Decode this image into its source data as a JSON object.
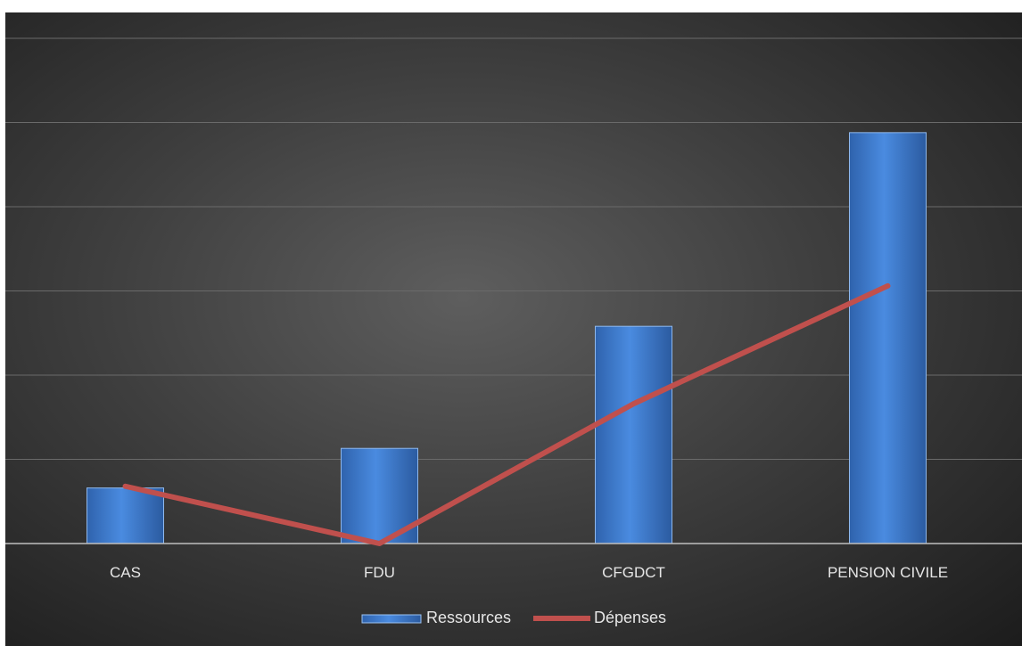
{
  "chart_data": {
    "type": "bar",
    "categories": [
      "CAS",
      "FDU",
      "CFGDCT",
      "PENSION CIVILE"
    ],
    "series": [
      {
        "name": "Ressources",
        "kind": "bar",
        "color": "#3f7fd6",
        "values": [
          6.6,
          11.3,
          25.8,
          48.8
        ]
      },
      {
        "name": "Dépenses",
        "kind": "line",
        "color": "#c0504d",
        "values": [
          6.8,
          0,
          16.6,
          30.6
        ]
      }
    ],
    "ylim": [
      0,
      60
    ],
    "y_ticks": [
      0,
      10,
      20,
      30,
      40,
      50,
      60
    ],
    "y_tick_labels_shown": false,
    "grid": true,
    "legend_position": "bottom"
  }
}
